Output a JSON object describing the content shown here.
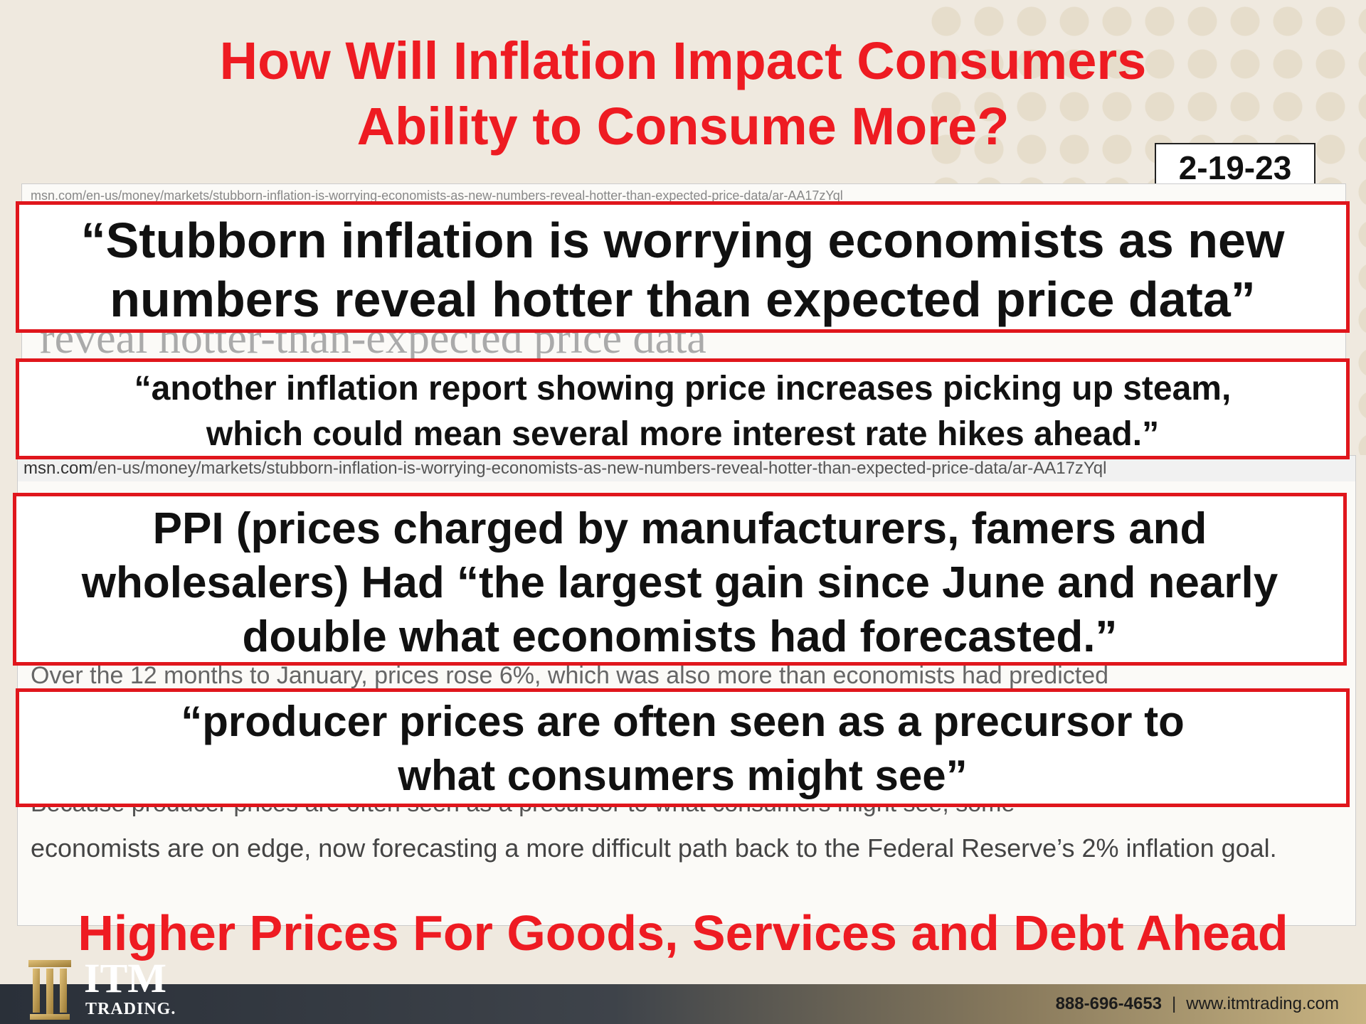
{
  "title": {
    "line1": "How Will Inflation Impact Consumers",
    "line2": "Ability to Consume More?"
  },
  "date": "2-19-23",
  "article1": {
    "url": "msn.com/en-us/money/markets/stubborn-inflation-is-worrying-economists-as-new-numbers-reveal-hotter-than-expected-price-data/ar-AA17zYql",
    "headline_fragment": "reveal hotter-than-expected price data"
  },
  "article2": {
    "url_domain": "msn.com",
    "url_path": "/en-us/money/markets/stubborn-inflation-is-worrying-economists-as-new-numbers-reveal-hotter-than-expected-price-data/ar-AA17zYql",
    "partial_line1": "Over the 12 months to January, prices rose 6%, which was also more than economists had predicted",
    "partial_line2": "Because producer prices are often seen as a precursor to what consumers might see, some",
    "body": "economists are on edge, now forecasting a more difficult path back to the Federal Reserve’s 2% inflation goal."
  },
  "quotes": {
    "q1_line1": "“Stubborn inflation is worrying economists as new",
    "q1_line2": "numbers reveal hotter than expected price data”",
    "q2_line1": "“another inflation report showing price increases picking up steam,",
    "q2_line2": "which could mean several more interest rate hikes ahead.”",
    "q3_line1": "PPI (prices charged by manufacturers, famers and",
    "q3_line2": "wholesalers) Had “the largest gain since June and nearly",
    "q3_line3": "double what economists had forecasted.”",
    "q4_line1": "“producer prices are often seen as a precursor to",
    "q4_line2": "what consumers might see”"
  },
  "conclusion": "Higher Prices For Goods, Services and Debt Ahead",
  "footer": {
    "logo_name": "ITM",
    "logo_sub": "TRADING.",
    "phone": "888-696-4653",
    "separator": "|",
    "website": "www.itmtrading.com"
  },
  "colors": {
    "accent_red": "#ee1b22",
    "quote_border": "#e0161c",
    "background": "#efe9df",
    "logo_gold": "#c9a24a"
  }
}
